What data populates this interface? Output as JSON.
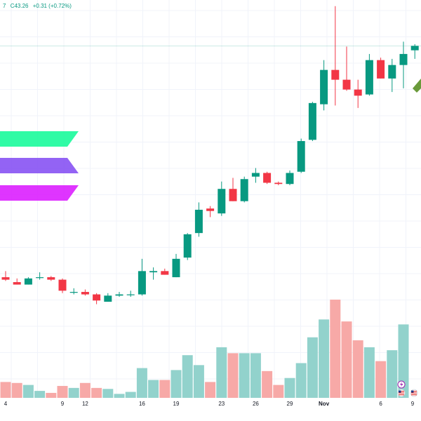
{
  "header": {
    "close_fragment": "7",
    "close_label": "C43.26",
    "change": "+0.31 (+0.72%)"
  },
  "colors": {
    "up": "#089981",
    "down": "#f23645",
    "up_volume": "#92d2cc",
    "down_volume": "#f7a9a7",
    "grid": "#f0f3fa",
    "price_line": "#089981",
    "logo_top": "#19fb9b",
    "logo_mid": "#8752f3",
    "logo_bottom": "#dc1fff",
    "arrow": "#6a9a3a"
  },
  "icons": [
    "solana-logo",
    "lightning-icon",
    "us-flag-icon",
    "us-flag-icon"
  ],
  "chart_data": {
    "type": "candlestick",
    "x_tick_labels": [
      "4",
      "9",
      "12",
      "16",
      "19",
      "23",
      "26",
      "29",
      "Nov",
      "6",
      "9"
    ],
    "candles": [
      {
        "o": 24.4,
        "h": 24.9,
        "l": 24.1,
        "c": 24.2,
        "v": 16
      },
      {
        "o": 24.0,
        "h": 24.3,
        "l": 23.8,
        "c": 23.8,
        "v": 15
      },
      {
        "o": 23.8,
        "h": 24.4,
        "l": 23.8,
        "c": 24.3,
        "v": 13
      },
      {
        "o": 24.4,
        "h": 24.8,
        "l": 24.2,
        "c": 24.4,
        "v": 7
      },
      {
        "o": 24.4,
        "h": 24.5,
        "l": 24.1,
        "c": 24.2,
        "v": 5
      },
      {
        "o": 24.2,
        "h": 24.3,
        "l": 23.1,
        "c": 23.3,
        "v": 12
      },
      {
        "o": 23.2,
        "h": 23.5,
        "l": 23.0,
        "c": 23.2,
        "v": 10
      },
      {
        "o": 23.2,
        "h": 23.4,
        "l": 22.9,
        "c": 23.0,
        "v": 15
      },
      {
        "o": 23.0,
        "h": 23.1,
        "l": 22.2,
        "c": 22.5,
        "v": 10
      },
      {
        "o": 22.4,
        "h": 23.1,
        "l": 22.4,
        "c": 22.9,
        "v": 9
      },
      {
        "o": 22.9,
        "h": 23.2,
        "l": 22.8,
        "c": 23.0,
        "v": 4
      },
      {
        "o": 23.0,
        "h": 23.3,
        "l": 22.8,
        "c": 23.0,
        "v": 6
      },
      {
        "o": 23.0,
        "h": 25.9,
        "l": 22.9,
        "c": 24.9,
        "v": 30
      },
      {
        "o": 24.8,
        "h": 25.2,
        "l": 24.2,
        "c": 24.9,
        "v": 18
      },
      {
        "o": 24.9,
        "h": 25.1,
        "l": 24.6,
        "c": 24.6,
        "v": 18
      },
      {
        "o": 24.4,
        "h": 26.3,
        "l": 24.4,
        "c": 25.9,
        "v": 28
      },
      {
        "o": 26.0,
        "h": 28.0,
        "l": 25.8,
        "c": 27.9,
        "v": 43
      },
      {
        "o": 28.0,
        "h": 30.5,
        "l": 27.7,
        "c": 29.9,
        "v": 33
      },
      {
        "o": 30.0,
        "h": 30.2,
        "l": 29.3,
        "c": 29.8,
        "v": 16
      },
      {
        "o": 29.6,
        "h": 32.2,
        "l": 29.4,
        "c": 31.6,
        "v": 51
      },
      {
        "o": 31.6,
        "h": 32.5,
        "l": 30.6,
        "c": 30.6,
        "v": 45
      },
      {
        "o": 30.6,
        "h": 32.6,
        "l": 30.5,
        "c": 32.4,
        "v": 45
      },
      {
        "o": 32.6,
        "h": 33.3,
        "l": 32.1,
        "c": 32.9,
        "v": 45
      },
      {
        "o": 32.9,
        "h": 33.0,
        "l": 32.0,
        "c": 32.1,
        "v": 27
      },
      {
        "o": 32.1,
        "h": 32.2,
        "l": 31.9,
        "c": 32.0,
        "v": 13
      },
      {
        "o": 32.0,
        "h": 33.1,
        "l": 31.9,
        "c": 32.9,
        "v": 20
      },
      {
        "o": 33.0,
        "h": 35.7,
        "l": 32.9,
        "c": 35.5,
        "v": 35
      },
      {
        "o": 35.6,
        "h": 38.7,
        "l": 35.5,
        "c": 38.6,
        "v": 61
      },
      {
        "o": 38.5,
        "h": 42.1,
        "l": 38.0,
        "c": 41.3,
        "v": 79
      },
      {
        "o": 41.3,
        "h": 46.5,
        "l": 38.4,
        "c": 40.5,
        "v": 99
      },
      {
        "o": 40.5,
        "h": 43.2,
        "l": 39.6,
        "c": 39.7,
        "v": 77
      },
      {
        "o": 39.7,
        "h": 40.5,
        "l": 38.2,
        "c": 39.2,
        "v": 58
      },
      {
        "o": 39.3,
        "h": 42.6,
        "l": 39.2,
        "c": 42.1,
        "v": 51
      },
      {
        "o": 42.1,
        "h": 42.3,
        "l": 40.6,
        "c": 40.6,
        "v": 37
      },
      {
        "o": 40.6,
        "h": 42.2,
        "l": 39.5,
        "c": 41.7,
        "v": 48
      },
      {
        "o": 41.7,
        "h": 43.6,
        "l": 39.8,
        "c": 42.6,
        "v": 74
      },
      {
        "o": 42.9,
        "h": 43.4,
        "l": 42.2,
        "c": 43.26,
        "v": 0
      }
    ],
    "current_price_line": 43.26,
    "y_range": [
      20.0,
      47.0
    ],
    "grid": true,
    "volume_panel": true
  }
}
